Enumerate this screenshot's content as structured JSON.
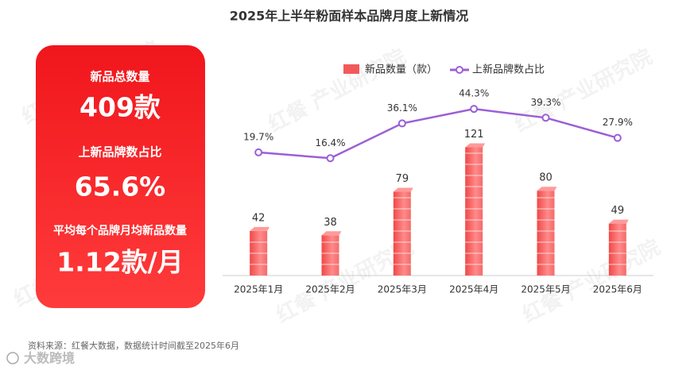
{
  "chart_data": {
    "type": "bar-line",
    "title": "2025年上半年粉面样本品牌月度上新情况",
    "categories": [
      "2025年1月",
      "2025年2月",
      "2025年3月",
      "2025年4月",
      "2025年5月",
      "2025年6月"
    ],
    "series": [
      {
        "name": "新品数量（款）",
        "type": "bar",
        "color": "#f25a5a",
        "values": [
          42,
          38,
          79,
          121,
          80,
          49
        ]
      },
      {
        "name": "上新品牌数占比",
        "type": "line",
        "axis": "y2",
        "color": "#9b5fd6",
        "values": [
          19.7,
          16.4,
          36.1,
          44.3,
          39.3,
          27.9
        ],
        "value_labels": [
          "19.7%",
          "16.4%",
          "36.1%",
          "44.3%",
          "39.3%",
          "27.9%"
        ]
      }
    ],
    "ylim": [
      0,
      200
    ],
    "y2lim": [
      -50,
      70
    ],
    "legend": "top"
  },
  "summary": [
    {
      "label": "新品总数量",
      "value": "409款"
    },
    {
      "label": "上新品牌数占比",
      "value": "65.6%"
    },
    {
      "label": "平均每个品牌月均新品数量",
      "value": "1.12款/月"
    }
  ],
  "watermark": "红餐 产业研究院",
  "source": "资料来源：红餐大数据，数据统计时间截至2025年6月",
  "logo": "大数跨境"
}
